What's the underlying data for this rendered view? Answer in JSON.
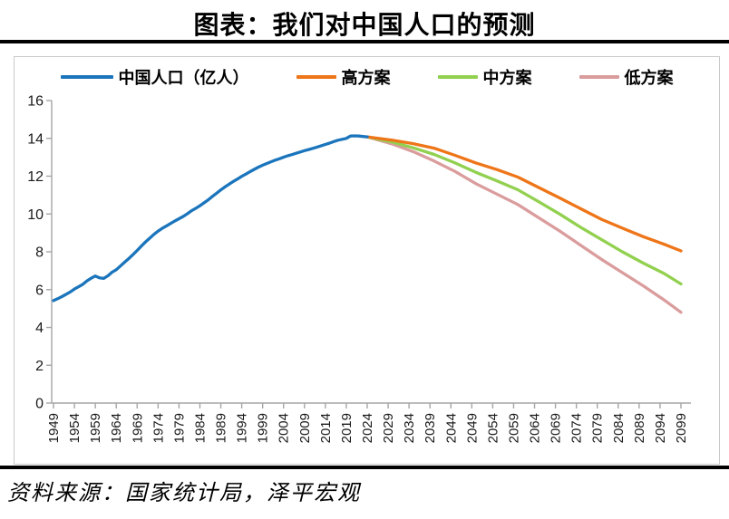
{
  "title": "图表：我们对中国人口的预测",
  "source_note": "资料来源：国家统计局，泽平宏观",
  "colors": {
    "population_blue": "#1B75BC",
    "high_orange": "#EE7518",
    "mid_green": "#92D050",
    "low_pink": "#DA9C9C",
    "axis_grey": "#A6A6A6",
    "rule_black": "#000000"
  },
  "chart_data": {
    "type": "line",
    "title": "图表：我们对中国人口的预测",
    "xlabel": "",
    "ylabel": "",
    "legend_position": "top",
    "grid": false,
    "y_axis": {
      "min": 0,
      "max": 16,
      "ticks": [
        0,
        2,
        4,
        6,
        8,
        10,
        12,
        14,
        16
      ]
    },
    "x_axis": {
      "min": 1949,
      "max": 2099,
      "tick_step": 5,
      "ticks": [
        1949,
        1954,
        1959,
        1964,
        1969,
        1974,
        1979,
        1984,
        1989,
        1994,
        1999,
        2004,
        2009,
        2014,
        2019,
        2024,
        2029,
        2034,
        2039,
        2044,
        2049,
        2054,
        2059,
        2064,
        2069,
        2074,
        2079,
        2084,
        2089,
        2094,
        2099
      ]
    },
    "series": [
      {
        "name": "中国人口（亿人）",
        "color": "#1B75BC",
        "points": [
          [
            1949,
            5.42
          ],
          [
            1950,
            5.52
          ],
          [
            1951,
            5.63
          ],
          [
            1952,
            5.75
          ],
          [
            1953,
            5.88
          ],
          [
            1954,
            6.03
          ],
          [
            1955,
            6.15
          ],
          [
            1956,
            6.28
          ],
          [
            1957,
            6.46
          ],
          [
            1958,
            6.6
          ],
          [
            1959,
            6.72
          ],
          [
            1960,
            6.62
          ],
          [
            1961,
            6.59
          ],
          [
            1962,
            6.73
          ],
          [
            1963,
            6.92
          ],
          [
            1964,
            7.05
          ],
          [
            1965,
            7.25
          ],
          [
            1966,
            7.45
          ],
          [
            1967,
            7.64
          ],
          [
            1968,
            7.85
          ],
          [
            1969,
            8.07
          ],
          [
            1970,
            8.3
          ],
          [
            1971,
            8.52
          ],
          [
            1972,
            8.72
          ],
          [
            1973,
            8.92
          ],
          [
            1974,
            9.09
          ],
          [
            1975,
            9.24
          ],
          [
            1976,
            9.37
          ],
          [
            1977,
            9.5
          ],
          [
            1978,
            9.63
          ],
          [
            1979,
            9.75
          ],
          [
            1980,
            9.87
          ],
          [
            1981,
            10.01
          ],
          [
            1982,
            10.17
          ],
          [
            1983,
            10.3
          ],
          [
            1984,
            10.44
          ],
          [
            1985,
            10.59
          ],
          [
            1986,
            10.75
          ],
          [
            1987,
            10.93
          ],
          [
            1988,
            11.1
          ],
          [
            1989,
            11.27
          ],
          [
            1990,
            11.43
          ],
          [
            1991,
            11.58
          ],
          [
            1992,
            11.72
          ],
          [
            1993,
            11.85
          ],
          [
            1994,
            11.99
          ],
          [
            1995,
            12.11
          ],
          [
            1996,
            12.24
          ],
          [
            1997,
            12.36
          ],
          [
            1998,
            12.48
          ],
          [
            1999,
            12.58
          ],
          [
            2000,
            12.67
          ],
          [
            2001,
            12.76
          ],
          [
            2002,
            12.85
          ],
          [
            2003,
            12.92
          ],
          [
            2004,
            13.0
          ],
          [
            2005,
            13.08
          ],
          [
            2006,
            13.14
          ],
          [
            2007,
            13.21
          ],
          [
            2008,
            13.28
          ],
          [
            2009,
            13.35
          ],
          [
            2010,
            13.41
          ],
          [
            2011,
            13.47
          ],
          [
            2012,
            13.54
          ],
          [
            2013,
            13.61
          ],
          [
            2014,
            13.68
          ],
          [
            2015,
            13.75
          ],
          [
            2016,
            13.83
          ],
          [
            2017,
            13.9
          ],
          [
            2018,
            13.95
          ],
          [
            2019,
            14.0
          ],
          [
            2020,
            14.12
          ],
          [
            2021,
            14.13
          ],
          [
            2022,
            14.12
          ],
          [
            2023,
            14.1
          ],
          [
            2024,
            14.08
          ]
        ]
      },
      {
        "name": "高方案",
        "color": "#EE7518",
        "points": [
          [
            2024,
            14.08
          ],
          [
            2030,
            13.9
          ],
          [
            2035,
            13.72
          ],
          [
            2040,
            13.48
          ],
          [
            2045,
            13.1
          ],
          [
            2050,
            12.7
          ],
          [
            2055,
            12.35
          ],
          [
            2060,
            11.95
          ],
          [
            2065,
            11.4
          ],
          [
            2070,
            10.85
          ],
          [
            2075,
            10.28
          ],
          [
            2080,
            9.72
          ],
          [
            2085,
            9.25
          ],
          [
            2090,
            8.8
          ],
          [
            2095,
            8.4
          ],
          [
            2099,
            8.05
          ]
        ]
      },
      {
        "name": "中方案",
        "color": "#92D050",
        "points": [
          [
            2024,
            14.08
          ],
          [
            2030,
            13.8
          ],
          [
            2035,
            13.5
          ],
          [
            2040,
            13.15
          ],
          [
            2045,
            12.7
          ],
          [
            2050,
            12.2
          ],
          [
            2055,
            11.75
          ],
          [
            2060,
            11.28
          ],
          [
            2065,
            10.65
          ],
          [
            2070,
            10.0
          ],
          [
            2075,
            9.3
          ],
          [
            2080,
            8.65
          ],
          [
            2085,
            8.0
          ],
          [
            2090,
            7.4
          ],
          [
            2095,
            6.85
          ],
          [
            2099,
            6.3
          ]
        ]
      },
      {
        "name": "低方案",
        "color": "#DA9C9C",
        "points": [
          [
            2024,
            14.08
          ],
          [
            2030,
            13.7
          ],
          [
            2035,
            13.3
          ],
          [
            2040,
            12.8
          ],
          [
            2045,
            12.25
          ],
          [
            2050,
            11.6
          ],
          [
            2055,
            11.05
          ],
          [
            2060,
            10.5
          ],
          [
            2065,
            9.8
          ],
          [
            2070,
            9.1
          ],
          [
            2075,
            8.35
          ],
          [
            2080,
            7.6
          ],
          [
            2085,
            6.9
          ],
          [
            2090,
            6.2
          ],
          [
            2095,
            5.45
          ],
          [
            2099,
            4.8
          ]
        ]
      }
    ]
  }
}
